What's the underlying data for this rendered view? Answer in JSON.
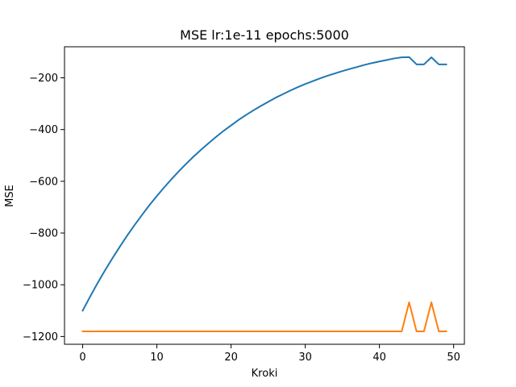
{
  "chart_data": {
    "type": "line",
    "title": "MSE lr:1e-11 epochs:5000",
    "xlabel": "Kroki",
    "ylabel": "MSE",
    "xlim": [
      -2.45,
      51.45
    ],
    "ylim": [
      -1230,
      -80
    ],
    "xticks": [
      0,
      10,
      20,
      30,
      40,
      50
    ],
    "yticks": [
      -1200,
      -1000,
      -800,
      -600,
      -400,
      -200
    ],
    "ytick_labels": [
      "−1200",
      "−1000",
      "−800",
      "−600",
      "−400",
      "−200"
    ],
    "grid": false,
    "legend": "none",
    "series": [
      {
        "color": "#1f77b4",
        "x": [
          0,
          1,
          2,
          3,
          4,
          5,
          6,
          7,
          8,
          9,
          10,
          11,
          12,
          13,
          14,
          15,
          16,
          17,
          18,
          19,
          20,
          21,
          22,
          23,
          24,
          25,
          26,
          27,
          28,
          29,
          30,
          31,
          32,
          33,
          34,
          35,
          36,
          37,
          38,
          39,
          40,
          41,
          42,
          43,
          44,
          45,
          46,
          47,
          48,
          49
        ],
        "y": [
          -1100,
          -1046,
          -994,
          -945,
          -898,
          -853,
          -810,
          -769,
          -730,
          -692,
          -657,
          -623,
          -591,
          -560,
          -531,
          -503,
          -477,
          -452,
          -428,
          -405,
          -384,
          -363,
          -344,
          -326,
          -309,
          -293,
          -277,
          -263,
          -249,
          -236,
          -224,
          -213,
          -202,
          -192,
          -183,
          -174,
          -166,
          -158,
          -150,
          -143,
          -137,
          -131,
          -125,
          -121,
          -120,
          -148,
          -148,
          -121,
          -148,
          -148
        ]
      },
      {
        "color": "#ff7f0e",
        "x": [
          0,
          1,
          2,
          3,
          4,
          5,
          6,
          7,
          8,
          9,
          10,
          11,
          12,
          13,
          14,
          15,
          16,
          17,
          18,
          19,
          20,
          21,
          22,
          23,
          24,
          25,
          26,
          27,
          28,
          29,
          30,
          31,
          32,
          33,
          34,
          35,
          36,
          37,
          38,
          39,
          40,
          41,
          42,
          43,
          44,
          45,
          46,
          47,
          48,
          49
        ],
        "y": [
          -1180,
          -1180,
          -1180,
          -1180,
          -1180,
          -1180,
          -1180,
          -1180,
          -1180,
          -1180,
          -1180,
          -1180,
          -1180,
          -1180,
          -1180,
          -1180,
          -1180,
          -1180,
          -1180,
          -1180,
          -1180,
          -1180,
          -1180,
          -1180,
          -1180,
          -1180,
          -1180,
          -1180,
          -1180,
          -1180,
          -1180,
          -1180,
          -1180,
          -1180,
          -1180,
          -1180,
          -1180,
          -1180,
          -1180,
          -1180,
          -1180,
          -1180,
          -1180,
          -1180,
          -1068,
          -1180,
          -1180,
          -1068,
          -1180,
          -1180
        ]
      }
    ]
  }
}
